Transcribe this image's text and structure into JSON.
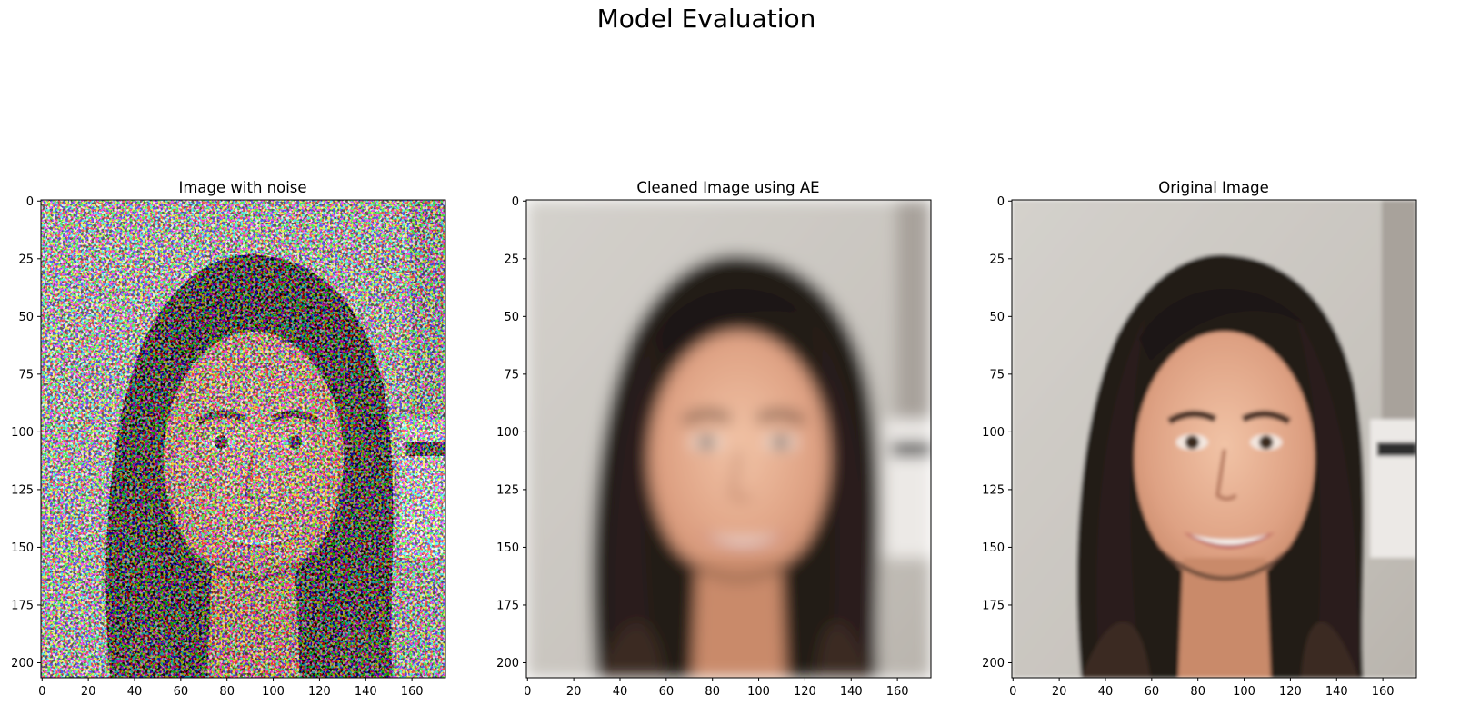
{
  "figure": {
    "suptitle": "Model Evaluation"
  },
  "chart_data": [
    {
      "type": "image",
      "title": "Image with noise",
      "xlabel": "",
      "ylabel": "",
      "xlim": [
        -0.5,
        174.5
      ],
      "ylim": [
        206.5,
        -0.5
      ],
      "xticks": [
        0,
        20,
        40,
        60,
        80,
        100,
        120,
        140,
        160
      ],
      "yticks": [
        0,
        25,
        50,
        75,
        100,
        125,
        150,
        175,
        200
      ],
      "grid": false,
      "content": "noisy"
    },
    {
      "type": "image",
      "title": "Cleaned Image using AE",
      "xlabel": "",
      "ylabel": "",
      "xlim": [
        -0.5,
        174.5
      ],
      "ylim": [
        206.5,
        -0.5
      ],
      "xticks": [
        0,
        20,
        40,
        60,
        80,
        100,
        120,
        140,
        160
      ],
      "yticks": [
        0,
        25,
        50,
        75,
        100,
        125,
        150,
        175,
        200
      ],
      "grid": false,
      "content": "blurred"
    },
    {
      "type": "image",
      "title": "Original Image",
      "xlabel": "",
      "ylabel": "",
      "xlim": [
        -0.5,
        174.5
      ],
      "ylim": [
        206.5,
        -0.5
      ],
      "xticks": [
        0,
        20,
        40,
        60,
        80,
        100,
        120,
        140,
        160
      ],
      "yticks": [
        0,
        25,
        50,
        75,
        100,
        125,
        150,
        175,
        200
      ],
      "grid": false,
      "content": "sharp"
    }
  ]
}
